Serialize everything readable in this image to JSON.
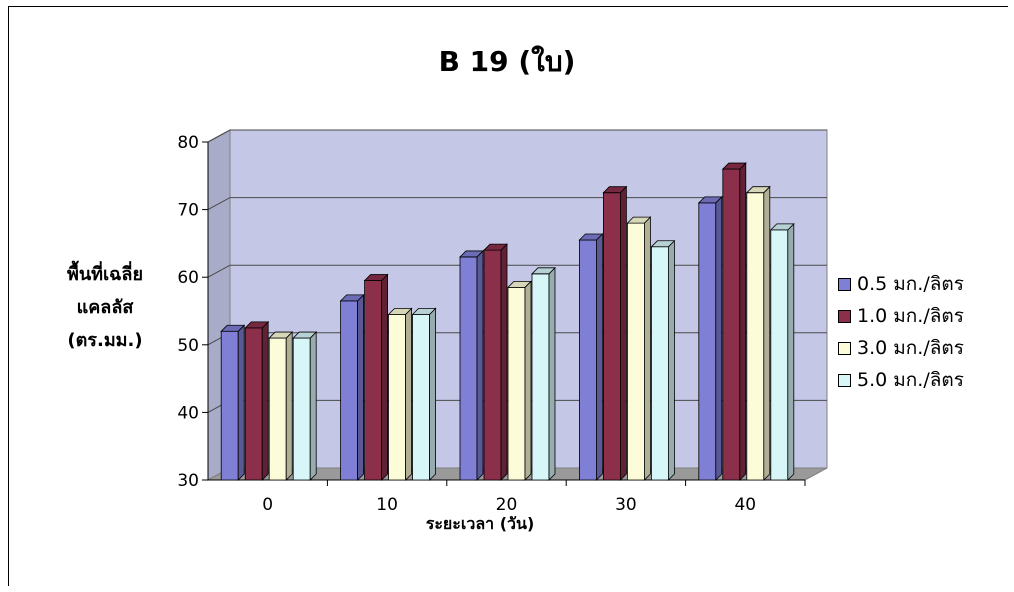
{
  "chart_data": {
    "type": "bar",
    "title": "B 19 (ใบ)",
    "xlabel": "ระยะเวลา (วัน)",
    "ylabel": [
      "พื้นที่เฉลี่ย",
      "แคลลัส",
      "(ตร.มม.)"
    ],
    "categories": [
      "0",
      "10",
      "20",
      "30",
      "40"
    ],
    "ylim": [
      30,
      80
    ],
    "yticks": [
      30,
      40,
      50,
      60,
      70,
      80
    ],
    "grid": true,
    "legend_position": "right",
    "series": [
      {
        "name": "0.5 มก./ลิตร",
        "color": "#7f7fd6",
        "values": [
          52,
          56.5,
          63,
          65.5,
          71
        ]
      },
      {
        "name": "1.0 มก./ลิตร",
        "color": "#8b2f4b",
        "values": [
          52.5,
          59.5,
          64,
          72.5,
          76
        ]
      },
      {
        "name": "3.0 มก./ลิตร",
        "color": "#fcfcd8",
        "values": [
          51,
          54.5,
          58.5,
          68,
          72.5
        ]
      },
      {
        "name": "5.0 มก./ลิตร",
        "color": "#d6f6f8",
        "values": [
          51,
          54.5,
          60.5,
          64.5,
          67
        ]
      }
    ]
  }
}
